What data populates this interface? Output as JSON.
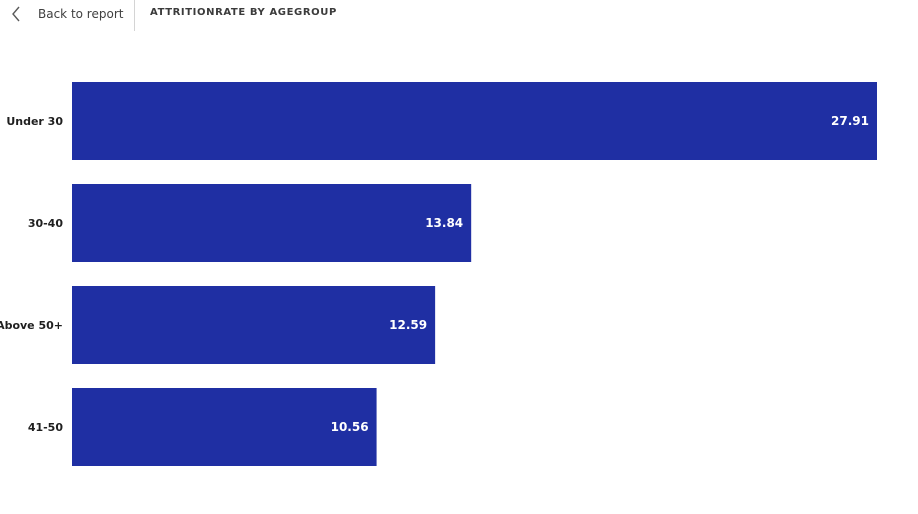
{
  "header": {
    "back_label": "Back to report",
    "visual_title": "ATTRITIONRATE BY AGEGROUP",
    "back_icon": "chevron-left-icon"
  },
  "chart_data": {
    "type": "bar",
    "orientation": "horizontal",
    "title": "ATTRITIONRATE BY AGEGROUP",
    "categories": [
      "Under 30",
      "30-40",
      "Above 50+",
      "41-50"
    ],
    "values": [
      27.91,
      13.84,
      12.59,
      10.56
    ],
    "data_labels": [
      "27.91",
      "13.84",
      "12.59",
      "10.56"
    ],
    "bar_color": "#1f2fa3",
    "xlim": [
      0,
      27.91
    ],
    "grid": false,
    "legend": "none"
  }
}
